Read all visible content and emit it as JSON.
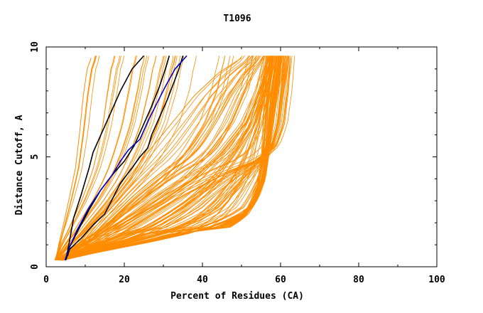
{
  "chart_data": {
    "type": "line",
    "title": "T1096",
    "xlabel": "Percent of Residues (CA)",
    "ylabel": "Distance Cutoff, A",
    "xlim": [
      0,
      100
    ],
    "ylim": [
      0,
      10
    ],
    "x_ticks": [
      "0",
      "20",
      "40",
      "60",
      "80",
      "100"
    ],
    "y_ticks": [
      "0",
      "5",
      "10"
    ],
    "grid": false,
    "legend": "none",
    "background_bundle_color": "#ff8c00",
    "background_bundle_size": 160,
    "series": [
      {
        "color": "#ff8c00",
        "points": [
          [
            2.5,
            0.3
          ],
          [
            3.2,
            1.0
          ],
          [
            4.5,
            2.0
          ],
          [
            6,
            3.2
          ],
          [
            7.5,
            4.5
          ],
          [
            8.5,
            6.0
          ],
          [
            9.5,
            7.8
          ],
          [
            10.5,
            9.0
          ],
          [
            11.5,
            9.5
          ]
        ]
      },
      {
        "color": "#ff8c00",
        "points": [
          [
            3,
            0.3
          ],
          [
            8,
            0.9
          ],
          [
            15,
            1.5
          ],
          [
            22,
            2.2
          ],
          [
            30,
            3.0
          ],
          [
            38,
            4.0
          ],
          [
            45,
            5.2
          ],
          [
            51,
            6.5
          ],
          [
            55,
            8.0
          ],
          [
            57,
            9.5
          ]
        ]
      },
      {
        "color": "#ff8c00",
        "points": [
          [
            4,
            0.3
          ],
          [
            16,
            0.8
          ],
          [
            28,
            1.3
          ],
          [
            37,
            1.7
          ],
          [
            47,
            1.8
          ],
          [
            51,
            2.3
          ],
          [
            53,
            3.0
          ],
          [
            55,
            4.0
          ],
          [
            56,
            5.0
          ],
          [
            56.5,
            6.5
          ],
          [
            57,
            8.0
          ],
          [
            58,
            9.5
          ]
        ]
      },
      {
        "color": "#ff8c00",
        "points": [
          [
            4,
            0.3
          ],
          [
            14,
            0.7
          ],
          [
            26,
            1.1
          ],
          [
            36,
            1.5
          ],
          [
            45,
            2.0
          ],
          [
            52,
            2.6
          ],
          [
            54,
            3.2
          ],
          [
            55.5,
            4.0
          ],
          [
            56.5,
            5.5
          ],
          [
            58,
            7.5
          ],
          [
            59.5,
            9.0
          ],
          [
            60,
            9.5
          ]
        ]
      },
      {
        "color": "#ff8c00",
        "points": [
          [
            4,
            0.3
          ],
          [
            15,
            1.2
          ],
          [
            24,
            2.2
          ],
          [
            33,
            3.2
          ],
          [
            42,
            4.0
          ],
          [
            50,
            4.6
          ],
          [
            55,
            4.9
          ],
          [
            59,
            5.5
          ],
          [
            61,
            6.5
          ],
          [
            62,
            8.0
          ],
          [
            62.5,
            9.5
          ]
        ]
      },
      {
        "color": "#ff8c00",
        "points": [
          [
            4,
            0.3
          ],
          [
            9,
            1.2
          ],
          [
            14,
            2.4
          ],
          [
            20,
            3.8
          ],
          [
            26,
            5.2
          ],
          [
            32,
            6.5
          ],
          [
            38,
            7.8
          ],
          [
            44,
            8.8
          ],
          [
            50,
            9.5
          ]
        ]
      },
      {
        "color": "#000000",
        "points": [
          [
            5,
            0.3
          ],
          [
            5.8,
            1.0
          ],
          [
            7,
            2.2
          ],
          [
            9,
            3.3
          ],
          [
            11,
            4.5
          ],
          [
            12,
            5.2
          ],
          [
            14,
            6.0
          ],
          [
            16.5,
            7.0
          ],
          [
            19,
            8.0
          ],
          [
            22,
            9.0
          ],
          [
            25,
            9.6
          ]
        ]
      },
      {
        "color": "#000000",
        "points": [
          [
            5,
            0.3
          ],
          [
            6,
            0.8
          ],
          [
            9,
            1.3
          ],
          [
            12,
            1.9
          ],
          [
            15,
            2.4
          ],
          [
            17,
            3.1
          ],
          [
            19,
            3.8
          ],
          [
            22,
            4.5
          ],
          [
            24,
            5.0
          ],
          [
            26,
            5.4
          ],
          [
            27,
            6.0
          ],
          [
            29,
            6.8
          ],
          [
            31,
            7.6
          ],
          [
            32.5,
            8.3
          ],
          [
            34,
            9.0
          ],
          [
            35,
            9.6
          ]
        ]
      },
      {
        "color": "#000000",
        "points": [
          [
            5.5,
            0.5
          ],
          [
            6,
            0.9
          ],
          [
            8,
            1.6
          ],
          [
            11,
            2.6
          ],
          [
            14,
            3.5
          ],
          [
            17,
            4.2
          ],
          [
            20,
            4.8
          ],
          [
            22.5,
            5.5
          ],
          [
            24.5,
            6.3
          ],
          [
            27,
            7.3
          ],
          [
            29,
            8.2
          ],
          [
            30.5,
            9.0
          ],
          [
            31.5,
            9.6
          ]
        ]
      },
      {
        "color": "#0000cc",
        "points": [
          [
            4.8,
            0.3
          ],
          [
            6,
            0.9
          ],
          [
            8,
            1.7
          ],
          [
            11,
            2.7
          ],
          [
            14,
            3.5
          ],
          [
            17,
            4.2
          ],
          [
            19,
            4.8
          ],
          [
            21,
            5.3
          ],
          [
            24,
            5.8
          ],
          [
            26,
            6.6
          ],
          [
            28.5,
            7.5
          ],
          [
            30.5,
            8.2
          ],
          [
            33,
            9.0
          ],
          [
            36,
            9.6
          ]
        ]
      }
    ]
  }
}
